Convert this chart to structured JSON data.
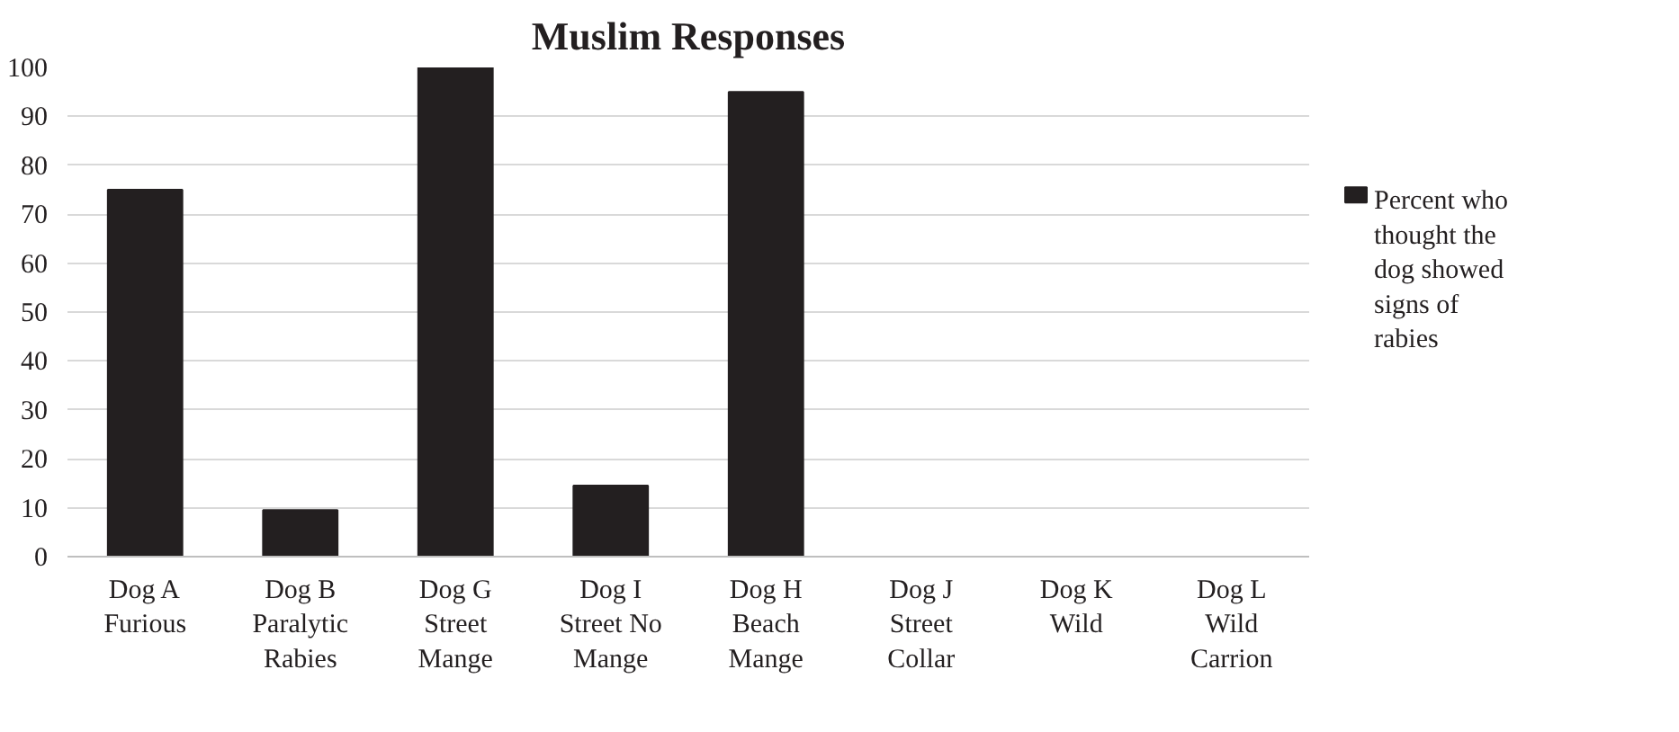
{
  "chart_data": {
    "type": "bar",
    "title": "Muslim Responses",
    "categories": [
      "Dog A\nFurious",
      "Dog B\nParalytic\nRabies",
      "Dog G\nStreet\nMange",
      "Dog I\nStreet No\nMange",
      "Dog H\nBeach\nMange",
      "Dog J\nStreet\nCollar",
      "Dog K\nWild",
      "Dog L\nWild\nCarrion"
    ],
    "series": [
      {
        "name": "Percent who thought the dog showed signs of rabies",
        "color": "#231f20",
        "values": [
          75,
          9.5,
          100,
          14.5,
          95,
          0,
          0,
          0
        ]
      }
    ],
    "ylim": [
      0,
      100
    ],
    "yticks": [
      0,
      10,
      20,
      30,
      40,
      50,
      60,
      70,
      80,
      90,
      100
    ],
    "grid": "y",
    "legend": "right"
  }
}
